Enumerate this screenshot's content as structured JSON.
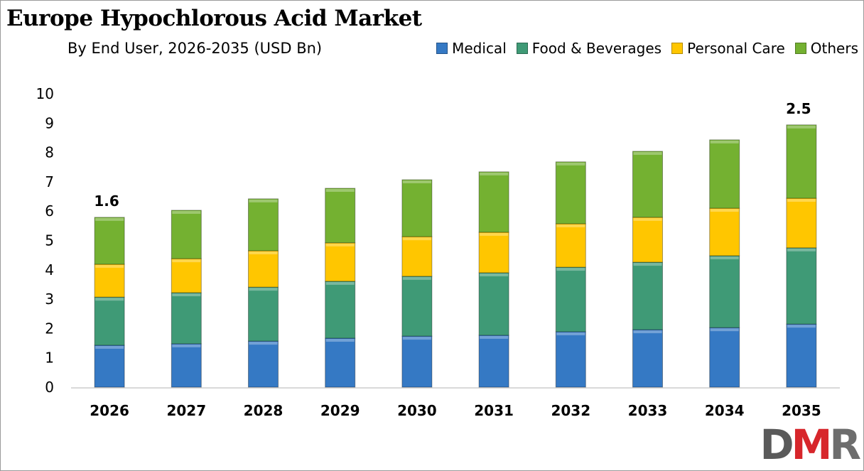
{
  "chart_data": {
    "type": "bar",
    "stacked": true,
    "title": "Europe Hypochlorous Acid Market",
    "subtitle": "By End User, 2026-2035 (USD Bn)",
    "categories": [
      "2026",
      "2027",
      "2028",
      "2029",
      "2030",
      "2031",
      "2032",
      "2033",
      "2034",
      "2035"
    ],
    "series": [
      {
        "name": "Medical",
        "color": "#3579c4",
        "values": [
          1.43,
          1.48,
          1.57,
          1.67,
          1.74,
          1.77,
          1.89,
          1.96,
          2.03,
          2.15
        ]
      },
      {
        "name": "Food & Beverages",
        "color": "#3f9a76",
        "values": [
          1.64,
          1.74,
          1.84,
          1.94,
          2.04,
          2.13,
          2.2,
          2.3,
          2.45,
          2.6
        ]
      },
      {
        "name": "Personal Care",
        "color": "#ffc600",
        "values": [
          1.12,
          1.16,
          1.24,
          1.31,
          1.35,
          1.38,
          1.48,
          1.53,
          1.62,
          1.69
        ]
      },
      {
        "name": "Others",
        "color": "#74b131",
        "values": [
          1.6,
          1.65,
          1.77,
          1.86,
          1.94,
          2.06,
          2.11,
          2.25,
          2.33,
          2.5
        ]
      }
    ],
    "data_labels": [
      {
        "category": "2026",
        "text": "1.6"
      },
      {
        "category": "2035",
        "text": "2.5"
      }
    ],
    "yticks": [
      "0",
      "1",
      "2",
      "3",
      "4",
      "5",
      "6",
      "7",
      "8",
      "9",
      "10"
    ],
    "ylim": [
      0,
      10
    ],
    "xlabel": "",
    "ylabel": "",
    "grid": false,
    "legend": "top-right"
  },
  "logo": {
    "text_d": "D",
    "text_m": "M",
    "text_r": "R"
  }
}
